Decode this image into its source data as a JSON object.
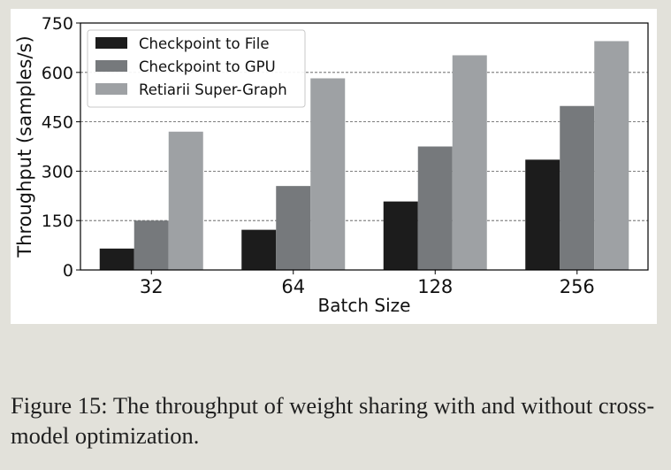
{
  "caption": "Figure 15: The throughput of weight sharing with and without cross-model optimization.",
  "chart_data": {
    "type": "bar",
    "categories": [
      "32",
      "64",
      "128",
      "256"
    ],
    "series": [
      {
        "name": "Checkpoint to File",
        "values": [
          65,
          122,
          208,
          335
        ],
        "color": "#1c1c1c"
      },
      {
        "name": "Checkpoint to GPU",
        "values": [
          150,
          255,
          375,
          498
        ],
        "color": "#76797c"
      },
      {
        "name": "Retiarii Super-Graph",
        "values": [
          420,
          582,
          652,
          695
        ],
        "color": "#9ea1a4"
      }
    ],
    "xlabel": "Batch Size",
    "ylabel": "Throughput (samples/s)",
    "ylim": [
      0,
      750
    ],
    "yticks": [
      "0",
      "150",
      "300",
      "450",
      "600",
      "750"
    ],
    "ytick_values": [
      0,
      150,
      300,
      450,
      600,
      750
    ],
    "grid": "horizontal dashed",
    "legend_position": "top-left"
  }
}
